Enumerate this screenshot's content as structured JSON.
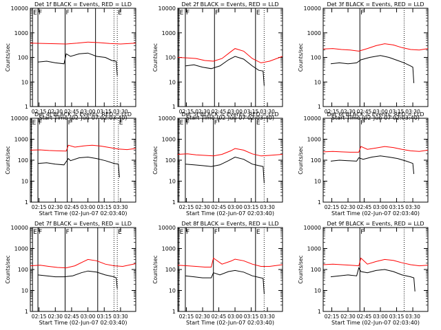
{
  "figure": {
    "x_tick_labels": [
      "02:15",
      "02:30",
      "02:45",
      "03:00",
      "03:15",
      "03:30"
    ],
    "y_tick_labels": [
      "1",
      "10",
      "100",
      "1000",
      "10000"
    ],
    "xlabel": "Start Time (02-Jun-07 02:03:40)",
    "ylabel": "Counts/sec",
    "colors": {
      "events": "#000000",
      "lld": "#ff0000",
      "axes": "#000000"
    }
  },
  "chart_data": [
    {
      "type": "line",
      "title": "Det 1f BLACK = Events, RED = LLD",
      "xlabel": "Start Time (02-Jun-07 02:03:40)",
      "ylabel": "Counts/sec",
      "y_scale": "log",
      "ylim": [
        1,
        10000
      ],
      "xlim": [
        "02:07",
        "03:44"
      ],
      "x_ticks": [
        "02:15",
        "02:30",
        "02:45",
        "03:00",
        "03:15",
        "03:30"
      ],
      "y_ticks": [
        1,
        10,
        100,
        1000,
        10000
      ],
      "markers": [
        {
          "label": "E",
          "x": "02:09",
          "style": "solid"
        },
        {
          "label": "F",
          "x": "02:14",
          "style": "solid"
        },
        {
          "label": "F",
          "x": "02:39",
          "style": "solid"
        },
        {
          "label": "",
          "x": "03:07",
          "style": "solid"
        },
        {
          "label": "",
          "x": "03:24",
          "style": "dotted"
        },
        {
          "label": "E",
          "x": "03:27",
          "style": "dotted"
        }
      ],
      "series": [
        {
          "x": [
            "02:14",
            "02:22",
            "02:30",
            "02:38",
            "02:40",
            "02:44",
            "02:52",
            "03:00",
            "03:08",
            "03:16",
            "03:22",
            "03:26",
            "03:27"
          ],
          "values": [
            65,
            70,
            60,
            55,
            140,
            110,
            140,
            150,
            110,
            100,
            75,
            70,
            18
          ]
        },
        {
          "x": [
            "02:07",
            "02:20",
            "02:30",
            "02:40",
            "02:50",
            "03:00",
            "03:10",
            "03:20",
            "03:30",
            "03:44"
          ],
          "values": [
            380,
            370,
            360,
            350,
            380,
            420,
            400,
            370,
            350,
            380
          ]
        }
      ]
    },
    {
      "type": "line",
      "title": "Det 2f BLACK = Events, RED = LLD",
      "xlabel": "Start Time (02-Jun-07 02:03:40)",
      "ylabel": "Counts/sec",
      "y_scale": "log",
      "ylim": [
        1,
        10000
      ],
      "xlim": [
        "02:07",
        "03:44"
      ],
      "x_ticks": [
        "02:15",
        "02:30",
        "02:45",
        "03:00",
        "03:15",
        "03:30"
      ],
      "y_ticks": [
        1,
        10,
        100,
        1000,
        10000
      ],
      "markers": [
        {
          "label": "E",
          "x": "02:08",
          "style": "solid"
        },
        {
          "label": "F",
          "x": "02:14",
          "style": "solid"
        },
        {
          "label": "F",
          "x": "02:41",
          "style": "solid"
        },
        {
          "label": "E",
          "x": "03:19",
          "style": "solid"
        },
        {
          "label": "",
          "x": "03:27",
          "style": "dotted"
        }
      ],
      "series": [
        {
          "x": [
            "02:14",
            "02:22",
            "02:30",
            "02:38",
            "02:46",
            "02:54",
            "03:00",
            "03:08",
            "03:16",
            "03:22",
            "03:26",
            "03:27"
          ],
          "values": [
            45,
            50,
            40,
            35,
            45,
            80,
            110,
            85,
            45,
            30,
            28,
            7
          ]
        },
        {
          "x": [
            "02:07",
            "02:16",
            "02:24",
            "02:32",
            "02:40",
            "02:48",
            "02:56",
            "03:00",
            "03:08",
            "03:16",
            "03:24",
            "03:32",
            "03:44"
          ],
          "values": [
            100,
            95,
            90,
            75,
            70,
            90,
            170,
            230,
            180,
            90,
            60,
            70,
            110
          ]
        }
      ]
    },
    {
      "type": "line",
      "title": "Det 3f BLACK = Events, RED = LLD",
      "xlabel": "Start Time (02-Jun-07 02:03:40)",
      "ylabel": "Counts/sec",
      "y_scale": "log",
      "ylim": [
        1,
        10000
      ],
      "xlim": [
        "02:07",
        "03:44"
      ],
      "x_ticks": [
        "02:15",
        "02:30",
        "02:45",
        "03:00",
        "03:15",
        "03:30"
      ],
      "y_ticks": [
        1,
        10,
        100,
        1000,
        10000
      ],
      "markers": [
        {
          "label": "F",
          "x": "02:41",
          "style": "solid"
        },
        {
          "label": "",
          "x": "03:22",
          "style": "dotted"
        }
      ],
      "series": [
        {
          "x": [
            "02:14",
            "02:22",
            "02:30",
            "02:38",
            "02:42",
            "02:50",
            "03:00",
            "03:08",
            "03:16",
            "03:22",
            "03:28",
            "03:30",
            "03:31"
          ],
          "values": [
            55,
            60,
            55,
            60,
            80,
            100,
            120,
            100,
            75,
            60,
            45,
            40,
            9
          ]
        },
        {
          "x": [
            "02:07",
            "02:16",
            "02:24",
            "02:32",
            "02:40",
            "02:48",
            "02:56",
            "03:04",
            "03:12",
            "03:20",
            "03:28",
            "03:36",
            "03:44"
          ],
          "values": [
            220,
            230,
            210,
            200,
            180,
            230,
            300,
            360,
            320,
            250,
            210,
            200,
            230
          ]
        }
      ]
    },
    {
      "type": "line",
      "title": "Det 4f BLACK = Events, RED = LLD",
      "xlabel": "Start Time (02-Jun-07 02:03:40)",
      "ylabel": "Counts/sec",
      "y_scale": "log",
      "ylim": [
        1,
        10000
      ],
      "xlim": [
        "02:07",
        "03:44"
      ],
      "x_ticks": [
        "02:15",
        "02:30",
        "02:45",
        "03:00",
        "03:15",
        "03:30"
      ],
      "y_ticks": [
        1,
        10,
        100,
        1000,
        10000
      ],
      "markers": [
        {
          "label": "E",
          "x": "02:08",
          "style": "solid"
        },
        {
          "label": "F",
          "x": "02:14",
          "style": "solid"
        },
        {
          "label": "F",
          "x": "02:41",
          "style": "solid"
        },
        {
          "label": "",
          "x": "03:10",
          "style": "solid"
        },
        {
          "label": "",
          "x": "03:24",
          "style": "dotted"
        },
        {
          "label": "E",
          "x": "03:28",
          "style": "dotted"
        }
      ],
      "series": [
        {
          "x": [
            "02:14",
            "02:22",
            "02:30",
            "02:38",
            "02:42",
            "02:44",
            "02:52",
            "03:00",
            "03:08",
            "03:16",
            "03:24",
            "03:28",
            "03:29"
          ],
          "values": [
            70,
            75,
            65,
            60,
            120,
            95,
            130,
            140,
            120,
            95,
            70,
            65,
            15
          ]
        },
        {
          "x": [
            "02:07",
            "02:16",
            "02:24",
            "02:32",
            "02:40",
            "02:42",
            "02:48",
            "02:56",
            "03:04",
            "03:12",
            "03:20",
            "03:28",
            "03:36",
            "03:44"
          ],
          "values": [
            300,
            310,
            290,
            280,
            270,
            520,
            420,
            480,
            520,
            470,
            400,
            340,
            320,
            360
          ]
        }
      ]
    },
    {
      "type": "line",
      "title": "Det 5f BLACK = Events, RED = LLD",
      "xlabel": "Start Time (02-Jun-07 02:03:40)",
      "ylabel": "Counts/sec",
      "y_scale": "log",
      "ylim": [
        1,
        10000
      ],
      "xlim": [
        "02:07",
        "03:44"
      ],
      "x_ticks": [
        "02:15",
        "02:30",
        "02:45",
        "03:00",
        "03:15",
        "03:30"
      ],
      "y_ticks": [
        1,
        10,
        100,
        1000,
        10000
      ],
      "markers": [
        {
          "label": "E",
          "x": "02:08",
          "style": "solid"
        },
        {
          "label": "F",
          "x": "02:14",
          "style": "solid"
        },
        {
          "label": "F",
          "x": "02:40",
          "style": "solid"
        },
        {
          "label": "E",
          "x": "03:19",
          "style": "solid"
        },
        {
          "label": "",
          "x": "03:27",
          "style": "dotted"
        }
      ],
      "series": [
        {
          "x": [
            "02:14",
            "02:22",
            "02:30",
            "02:38",
            "02:46",
            "02:54",
            "03:00",
            "03:08",
            "03:16",
            "03:22",
            "03:26",
            "03:27"
          ],
          "values": [
            65,
            60,
            55,
            50,
            60,
            95,
            140,
            110,
            65,
            55,
            50,
            8
          ]
        },
        {
          "x": [
            "02:07",
            "02:16",
            "02:24",
            "02:32",
            "02:40",
            "02:48",
            "02:56",
            "03:00",
            "03:08",
            "03:16",
            "03:24",
            "03:32",
            "03:44"
          ],
          "values": [
            190,
            200,
            180,
            170,
            160,
            190,
            280,
            360,
            300,
            200,
            160,
            170,
            190
          ]
        }
      ]
    },
    {
      "type": "line",
      "title": "Det 6f BLACK = Events, RED = LLD",
      "xlabel": "Start Time (02-Jun-07 02:03:40)",
      "ylabel": "Counts/sec",
      "y_scale": "log",
      "ylim": [
        1,
        10000
      ],
      "xlim": [
        "02:07",
        "03:44"
      ],
      "x_ticks": [
        "02:15",
        "02:30",
        "02:45",
        "03:00",
        "03:15",
        "03:30"
      ],
      "y_ticks": [
        1,
        10,
        100,
        1000,
        10000
      ],
      "markers": [
        {
          "label": "F",
          "x": "02:41",
          "style": "solid"
        },
        {
          "label": "",
          "x": "03:22",
          "style": "dotted"
        }
      ],
      "series": [
        {
          "x": [
            "02:14",
            "02:22",
            "02:30",
            "02:38",
            "02:40",
            "02:44",
            "02:52",
            "03:00",
            "03:08",
            "03:16",
            "03:24",
            "03:30",
            "03:31"
          ],
          "values": [
            90,
            100,
            95,
            90,
            130,
            110,
            140,
            160,
            140,
            120,
            90,
            70,
            22
          ]
        },
        {
          "x": [
            "02:07",
            "02:16",
            "02:24",
            "02:32",
            "02:40",
            "02:42",
            "02:48",
            "02:56",
            "03:04",
            "03:12",
            "03:20",
            "03:28",
            "03:36",
            "03:44"
          ],
          "values": [
            250,
            260,
            250,
            240,
            240,
            450,
            330,
            380,
            450,
            400,
            330,
            280,
            260,
            300
          ]
        }
      ]
    },
    {
      "type": "line",
      "title": "Det 7f BLACK = Events, RED = LLD",
      "xlabel": "Start Time (02-Jun-07 02:03:40)",
      "ylabel": "Counts/sec",
      "y_scale": "log",
      "ylim": [
        1,
        10000
      ],
      "xlim": [
        "02:07",
        "03:44"
      ],
      "x_ticks": [
        "02:15",
        "02:30",
        "02:45",
        "03:00",
        "03:15",
        "03:30"
      ],
      "y_ticks": [
        1,
        10,
        100,
        1000,
        10000
      ],
      "markers": [
        {
          "label": "E",
          "x": "02:09",
          "style": "solid"
        },
        {
          "label": "F",
          "x": "02:14",
          "style": "solid"
        },
        {
          "label": "F",
          "x": "02:39",
          "style": "solid"
        },
        {
          "label": "",
          "x": "03:09",
          "style": "solid"
        },
        {
          "label": "",
          "x": "03:24",
          "style": "dotted"
        },
        {
          "label": "E",
          "x": "03:27",
          "style": "dotted"
        }
      ],
      "series": [
        {
          "x": [
            "02:14",
            "02:22",
            "02:30",
            "02:38",
            "02:46",
            "02:54",
            "03:00",
            "03:08",
            "03:16",
            "03:24",
            "03:26",
            "03:27"
          ],
          "values": [
            55,
            50,
            45,
            45,
            50,
            70,
            85,
            75,
            55,
            45,
            40,
            12
          ]
        },
        {
          "x": [
            "02:07",
            "02:16",
            "02:24",
            "02:32",
            "02:40",
            "02:48",
            "02:56",
            "03:00",
            "03:08",
            "03:16",
            "03:24",
            "03:32",
            "03:44"
          ],
          "values": [
            150,
            160,
            140,
            125,
            120,
            150,
            240,
            300,
            260,
            180,
            150,
            140,
            190
          ]
        }
      ]
    },
    {
      "type": "line",
      "title": "Det 8f BLACK = Events, RED = LLD",
      "xlabel": "Start Time (02-Jun-07 02:03:40)",
      "ylabel": "Counts/sec",
      "y_scale": "log",
      "ylim": [
        1,
        10000
      ],
      "xlim": [
        "02:07",
        "03:44"
      ],
      "x_ticks": [
        "02:15",
        "02:30",
        "02:45",
        "03:00",
        "03:15",
        "03:30"
      ],
      "y_ticks": [
        1,
        10,
        100,
        1000,
        10000
      ],
      "markers": [
        {
          "label": "E",
          "x": "02:08",
          "style": "solid"
        },
        {
          "label": "F",
          "x": "02:14",
          "style": "solid"
        },
        {
          "label": "F",
          "x": "02:40",
          "style": "solid"
        },
        {
          "label": "E",
          "x": "03:19",
          "style": "solid"
        },
        {
          "label": "",
          "x": "03:27",
          "style": "dotted"
        }
      ],
      "series": [
        {
          "x": [
            "02:14",
            "02:22",
            "02:30",
            "02:38",
            "02:40",
            "02:46",
            "02:54",
            "03:00",
            "03:08",
            "03:16",
            "03:24",
            "03:26",
            "03:27"
          ],
          "values": [
            50,
            45,
            40,
            40,
            70,
            55,
            80,
            90,
            75,
            50,
            40,
            38,
            7
          ]
        },
        {
          "x": [
            "02:07",
            "02:16",
            "02:24",
            "02:32",
            "02:38",
            "02:40",
            "02:48",
            "02:56",
            "03:00",
            "03:08",
            "03:16",
            "03:24",
            "03:32",
            "03:44"
          ],
          "values": [
            160,
            150,
            140,
            130,
            130,
            350,
            180,
            250,
            310,
            260,
            180,
            140,
            140,
            170
          ]
        }
      ]
    },
    {
      "type": "line",
      "title": "Det 9f BLACK = Events, RED = LLD",
      "xlabel": "Start Time (02-Jun-07 02:03:40)",
      "ylabel": "Counts/sec",
      "y_scale": "log",
      "ylim": [
        1,
        10000
      ],
      "xlim": [
        "02:07",
        "03:44"
      ],
      "x_ticks": [
        "02:15",
        "02:30",
        "02:45",
        "03:00",
        "03:15",
        "03:30"
      ],
      "y_ticks": [
        1,
        10,
        100,
        1000,
        10000
      ],
      "markers": [
        {
          "label": "F",
          "x": "02:41",
          "style": "solid"
        },
        {
          "label": "",
          "x": "03:22",
          "style": "dotted"
        }
      ],
      "series": [
        {
          "x": [
            "02:14",
            "02:22",
            "02:30",
            "02:38",
            "02:40",
            "02:42",
            "02:48",
            "02:56",
            "03:04",
            "03:12",
            "03:20",
            "03:28",
            "03:31",
            "03:32"
          ],
          "values": [
            45,
            50,
            55,
            50,
            120,
            80,
            70,
            90,
            100,
            80,
            55,
            45,
            40,
            9
          ]
        },
        {
          "x": [
            "02:07",
            "02:16",
            "02:24",
            "02:32",
            "02:40",
            "02:42",
            "02:48",
            "02:56",
            "03:04",
            "03:12",
            "03:20",
            "03:28",
            "03:36",
            "03:44"
          ],
          "values": [
            170,
            180,
            170,
            160,
            150,
            350,
            180,
            240,
            300,
            270,
            210,
            170,
            150,
            160
          ]
        }
      ]
    }
  ]
}
